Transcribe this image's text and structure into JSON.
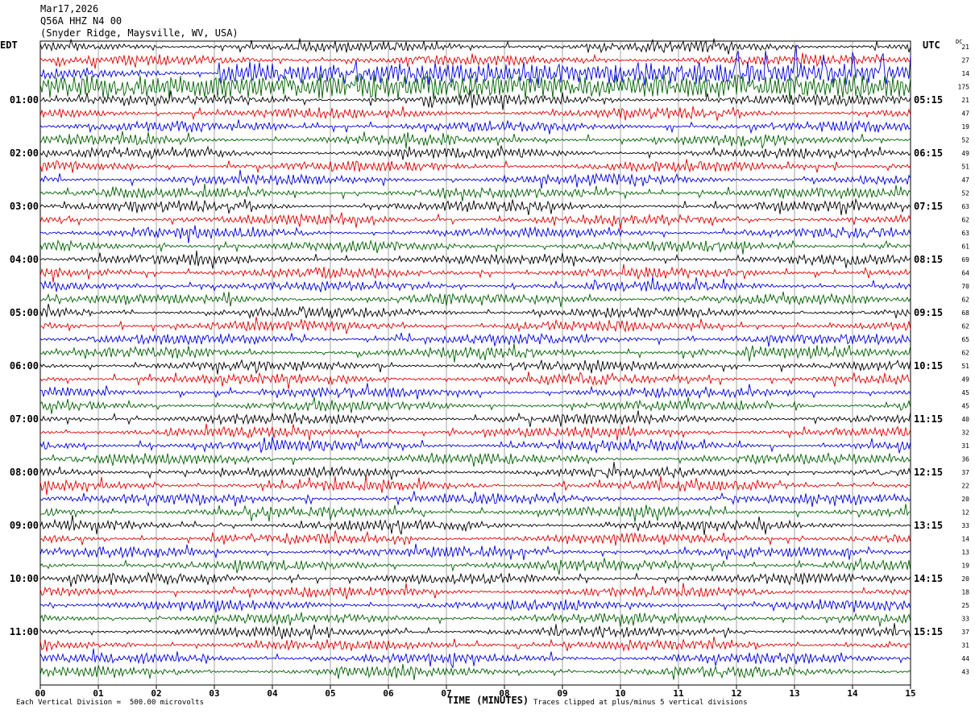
{
  "header": {
    "date": "Mar17,2026",
    "station": "Q56A HHZ N4 00",
    "location": "(Snyder Ridge, Maysville, WV, USA)"
  },
  "left_tz": "EDT",
  "right_tz": "UTC",
  "dc_label": "DC",
  "footer": {
    "scale": "Each Vertical Division =  500.00 microvolts",
    "clip": "Traces clipped at plus/minus 5 vertical divisions"
  },
  "colors": {
    "trace_cycle": [
      "#000000",
      "#e00000",
      "#0000e0",
      "#006000"
    ]
  },
  "chart_data": {
    "type": "line",
    "title": "",
    "xlabel": "TIME (MINUTES)",
    "xlim": [
      0,
      15
    ],
    "x_ticks": [
      "00",
      "01",
      "02",
      "03",
      "04",
      "05",
      "06",
      "07",
      "08",
      "09",
      "10",
      "11",
      "12",
      "13",
      "14",
      "15"
    ],
    "left_hour_labels": [
      "01:00",
      "02:00",
      "03:00",
      "04:00",
      "05:00",
      "06:00",
      "07:00",
      "08:00",
      "09:00",
      "10:00",
      "11:00"
    ],
    "right_hour_labels": [
      "05:15",
      "06:15",
      "07:15",
      "08:15",
      "09:15",
      "10:15",
      "11:15",
      "12:15",
      "13:15",
      "14:15",
      "15:15"
    ],
    "dc_offsets": [
      21,
      27,
      14,
      175,
      21,
      47,
      19,
      52,
      49,
      51,
      47,
      52,
      63,
      62,
      63,
      61,
      69,
      64,
      70,
      62,
      68,
      62,
      65,
      62,
      51,
      49,
      45,
      45,
      40,
      32,
      31,
      36,
      37,
      22,
      20,
      12,
      33,
      14,
      13,
      19,
      20,
      18,
      25,
      33,
      37,
      31,
      44,
      43
    ],
    "trace_count": 48,
    "minutes_per_trace": 15
  }
}
